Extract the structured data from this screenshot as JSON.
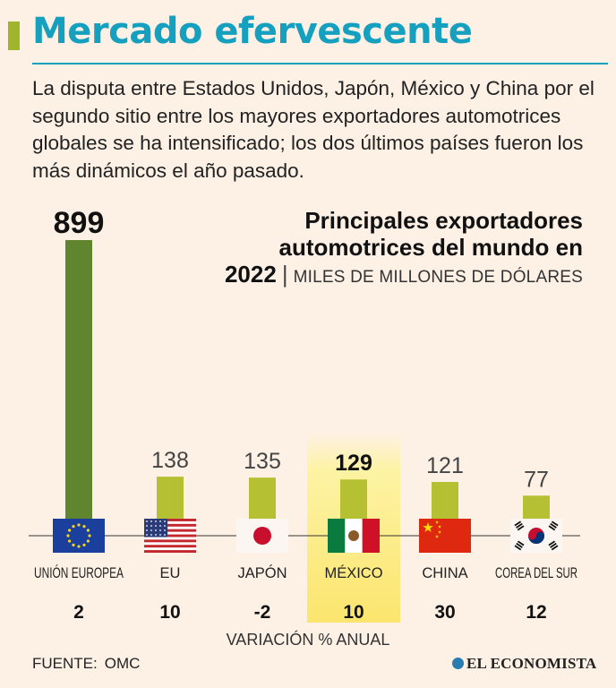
{
  "header": {
    "title": "Mercado efervescente",
    "lead": "La disputa entre Estados Unidos, Japón, México y China por el segundo sitio entre los mayores exportadores automotrices globales se ha intensificado; los dos últimos países fueron los más dinámicos el año pasado."
  },
  "chart_title": {
    "line1": "Principales exportadores",
    "line2": "automotrices del mundo en",
    "year": "2022",
    "separator": "|",
    "units": "MILES DE MILLONES DE DÓLARES"
  },
  "chart_data": {
    "type": "bar",
    "title": "Principales exportadores automotrices del mundo en 2022",
    "ylabel": "Miles de millones de dólares",
    "categories": [
      "UNIÓN EUROPEA",
      "EU",
      "JAPÓN",
      "MÉXICO",
      "CHINA",
      "COREA DEL SUR"
    ],
    "values": [
      899,
      138,
      135,
      129,
      121,
      77
    ],
    "value_labels": [
      "899",
      "138",
      "135",
      "129",
      "121",
      "77"
    ],
    "variation_label": "VARIACIÓN % ANUAL",
    "variation": [
      "2",
      "10",
      "-2",
      "10",
      "30",
      "12"
    ],
    "highlight": "MÉXICO",
    "ylim": [
      0,
      899
    ]
  },
  "colors": {
    "title": "#16a0bf",
    "bar_main": "#5f862e",
    "bar_other": "#b5c033",
    "highlight": "#fdf3a4"
  },
  "footer": {
    "source_label": "FUENTE:",
    "source": "OMC",
    "brand": "EL ECONOMISTA"
  }
}
